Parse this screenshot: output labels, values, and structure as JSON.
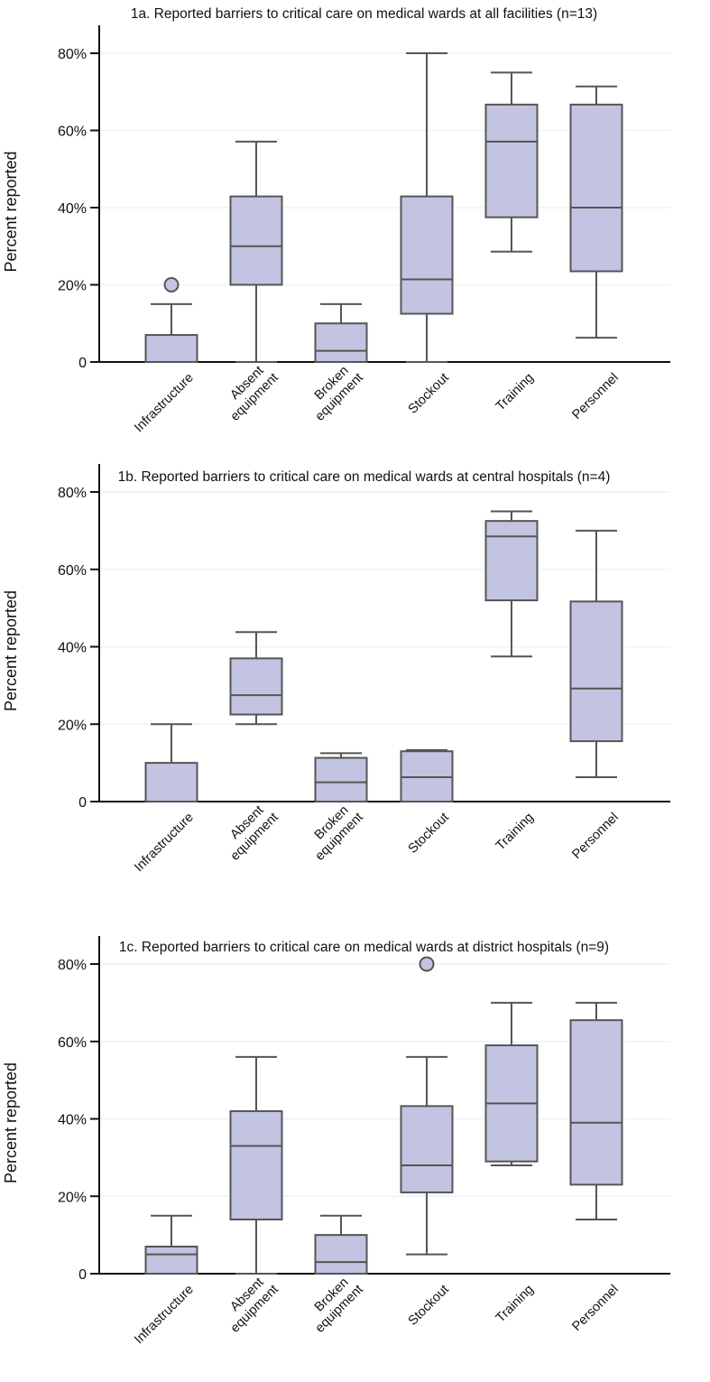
{
  "chart_data": [
    {
      "type": "box",
      "title": "1a. Reported barriers to critical care on medical wards at all facilities (n=13)",
      "ylabel": "Percent reported",
      "ylim": [
        0,
        87
      ],
      "yticks": [
        0,
        20,
        40,
        60,
        80
      ],
      "ytick_labels": [
        "0",
        "20%",
        "40%",
        "60%",
        "80%"
      ],
      "categories": [
        [
          "Infrastructure"
        ],
        [
          "Absent",
          "equipment"
        ],
        [
          "Broken",
          "equipment"
        ],
        [
          "Stockout"
        ],
        [
          "Training"
        ],
        [
          "Personnel"
        ]
      ],
      "boxes": [
        {
          "min": 0,
          "q1": 0,
          "median": 0,
          "q3": 7,
          "max": 15,
          "outliers": [
            20
          ]
        },
        {
          "min": 0,
          "q1": 20,
          "median": 30,
          "q3": 42.9,
          "max": 57.1,
          "outliers": []
        },
        {
          "min": 0,
          "q1": 0,
          "median": 2.9,
          "q3": 10,
          "max": 15,
          "outliers": []
        },
        {
          "min": 0,
          "q1": 12.5,
          "median": 21.4,
          "q3": 42.9,
          "max": 80,
          "outliers": []
        },
        {
          "min": 28.6,
          "q1": 37.5,
          "median": 57.1,
          "q3": 66.7,
          "max": 75,
          "outliers": []
        },
        {
          "min": 6.3,
          "q1": 23.5,
          "median": 40,
          "q3": 66.7,
          "max": 71.4,
          "outliers": []
        }
      ]
    },
    {
      "type": "box",
      "title": "1b. Reported barriers to critical care on medical wards at central hospitals (n=4)",
      "ylabel": "Percent reported",
      "ylim": [
        0,
        87
      ],
      "yticks": [
        0,
        20,
        40,
        60,
        80
      ],
      "ytick_labels": [
        "0",
        "20%",
        "40%",
        "60%",
        "80%"
      ],
      "categories": [
        [
          "Infrastructure"
        ],
        [
          "Absent",
          "equipment"
        ],
        [
          "Broken",
          "equipment"
        ],
        [
          "Stockout"
        ],
        [
          "Training"
        ],
        [
          "Personnel"
        ]
      ],
      "boxes": [
        {
          "min": 0,
          "q1": 0,
          "median": 0,
          "q3": 10,
          "max": 20,
          "outliers": []
        },
        {
          "min": 20,
          "q1": 22.5,
          "median": 27.5,
          "q3": 37,
          "max": 43.8,
          "outliers": []
        },
        {
          "min": 0,
          "q1": 0,
          "median": 5,
          "q3": 11.3,
          "max": 12.5,
          "outliers": []
        },
        {
          "min": 0,
          "q1": 0,
          "median": 6.3,
          "q3": 13,
          "max": 13.3,
          "outliers": []
        },
        {
          "min": 37.5,
          "q1": 52,
          "median": 68.5,
          "q3": 72.5,
          "max": 75,
          "outliers": []
        },
        {
          "min": 6.3,
          "q1": 15.6,
          "median": 29.2,
          "q3": 51.7,
          "max": 70,
          "outliers": []
        }
      ]
    },
    {
      "type": "box",
      "title": "1c. Reported barriers to critical care on medical wards at district hospitals (n=9)",
      "ylabel": "Percent reported",
      "ylim": [
        0,
        87
      ],
      "yticks": [
        0,
        20,
        40,
        60,
        80
      ],
      "ytick_labels": [
        "0",
        "20%",
        "40%",
        "60%",
        "80%"
      ],
      "categories": [
        [
          "Infrastructure"
        ],
        [
          "Absent",
          "equipment"
        ],
        [
          "Broken",
          "equipment"
        ],
        [
          "Stockout"
        ],
        [
          "Training"
        ],
        [
          "Personnel"
        ]
      ],
      "boxes": [
        {
          "min": 0,
          "q1": 0,
          "median": 5,
          "q3": 7,
          "max": 15,
          "outliers": []
        },
        {
          "min": 0,
          "q1": 14,
          "median": 33,
          "q3": 42,
          "max": 56,
          "outliers": []
        },
        {
          "min": 0,
          "q1": 0,
          "median": 3,
          "q3": 10,
          "max": 15,
          "outliers": []
        },
        {
          "min": 5,
          "q1": 21,
          "median": 28,
          "q3": 43.3,
          "max": 56,
          "outliers": [
            80
          ]
        },
        {
          "min": 28,
          "q1": 29,
          "median": 44,
          "q3": 59,
          "max": 70,
          "outliers": []
        },
        {
          "min": 14,
          "q1": 23,
          "median": 39,
          "q3": 65.5,
          "max": 70,
          "outliers": []
        }
      ]
    }
  ]
}
